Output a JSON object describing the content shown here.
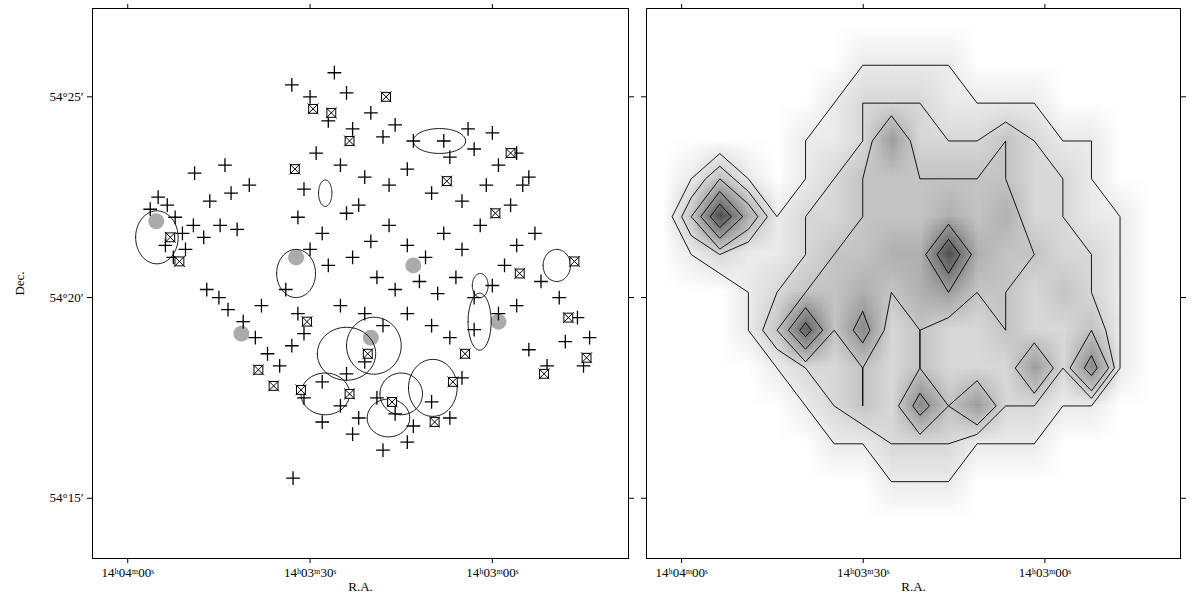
{
  "chart_data": [
    {
      "type": "scatter",
      "xlabel": "R.A.",
      "ylabel": "Dec.",
      "xlim": [
        50645.8,
        50557.6
      ],
      "ylim": [
        3253.5,
        3267.2
      ],
      "xticks": [
        {
          "value": 50640,
          "label": "14ʰ04ᵐ00ˢ"
        },
        {
          "value": 50610,
          "label": "14ʰ03ᵐ30ˢ"
        },
        {
          "value": 50580,
          "label": "14ʰ03ᵐ00ˢ"
        }
      ],
      "yticks": [
        {
          "value": 3255,
          "label": "54°15′"
        },
        {
          "value": 3260,
          "label": "54°20′"
        },
        {
          "value": 3265,
          "label": "54°25′"
        }
      ],
      "knots": [
        [
          50635.3,
          3261.9
        ],
        [
          50621.3,
          3259.1
        ],
        [
          50612.3,
          3261.0
        ],
        [
          50593,
          3260.8
        ],
        [
          50579,
          3259.4
        ],
        [
          50600,
          3259.0
        ]
      ],
      "series": [
        {
          "marker": "plus",
          "color": "#000000",
          "values": [
            [
              50636.3,
              3262.2
            ],
            [
              50635.0,
              3262.5
            ],
            [
              50633.5,
              3262.3
            ],
            [
              50632.2,
              3262.0
            ],
            [
              50631.0,
              3261.6
            ],
            [
              50633.8,
              3261.3
            ],
            [
              50632.5,
              3261.0
            ],
            [
              50630.5,
              3261.2
            ],
            [
              50629.2,
              3261.8
            ],
            [
              50627.5,
              3261.5
            ],
            [
              50626.5,
              3262.4
            ],
            [
              50624.8,
              3261.8
            ],
            [
              50623,
              3262.6
            ],
            [
              50622,
              3261.7
            ],
            [
              50620,
              3262.8
            ],
            [
              50627,
              3260.2
            ],
            [
              50625,
              3260.0
            ],
            [
              50623.5,
              3259.7
            ],
            [
              50621,
              3259.4
            ],
            [
              50619,
              3259.0
            ],
            [
              50617,
              3258.6
            ],
            [
              50615,
              3258.3
            ],
            [
              50613,
              3258.8
            ],
            [
              50611,
              3259.1
            ],
            [
              50618,
              3259.8
            ],
            [
              50614,
              3260.2
            ],
            [
              50612,
              3259.6
            ],
            [
              50613,
              3265.3
            ],
            [
              50610,
              3265.0
            ],
            [
              50606,
              3265.6
            ],
            [
              50604,
              3265.1
            ],
            [
              50607,
              3264.4
            ],
            [
              50603,
              3264.2
            ],
            [
              50600,
              3264.6
            ],
            [
              50598,
              3264.0
            ],
            [
              50596,
              3264.3
            ],
            [
              50593,
              3263.9
            ],
            [
              50609,
              3263.6
            ],
            [
              50605,
              3263.3
            ],
            [
              50601,
              3263.0
            ],
            [
              50611,
              3262.7
            ],
            [
              50597,
              3262.8
            ],
            [
              50594,
              3263.2
            ],
            [
              50590,
              3262.6
            ],
            [
              50612,
              3262.0
            ],
            [
              50608,
              3261.6
            ],
            [
              50604,
              3262.1
            ],
            [
              50610,
              3261.2
            ],
            [
              50607,
              3260.8
            ],
            [
              50603,
              3261.0
            ],
            [
              50600,
              3261.4
            ],
            [
              50597,
              3261.8
            ],
            [
              50594,
              3261.3
            ],
            [
              50591,
              3261.0
            ],
            [
              50588,
              3261.6
            ],
            [
              50585,
              3261.2
            ],
            [
              50582,
              3261.8
            ],
            [
              50599,
              3260.5
            ],
            [
              50596,
              3260.2
            ],
            [
              50592,
              3260.4
            ],
            [
              50589,
              3260.1
            ],
            [
              50586,
              3260.5
            ],
            [
              50583,
              3260.0
            ],
            [
              50580,
              3260.3
            ],
            [
              50578,
              3260.8
            ],
            [
              50576,
              3261.3
            ],
            [
              50605,
              3259.8
            ],
            [
              50601,
              3259.6
            ],
            [
              50598,
              3259.3
            ],
            [
              50594,
              3259.6
            ],
            [
              50590,
              3259.3
            ],
            [
              50587,
              3259.0
            ],
            [
              50583,
              3259.2
            ],
            [
              50579,
              3259.6
            ],
            [
              50576,
              3259.8
            ],
            [
              50602,
              3262.3
            ],
            [
              50585,
              3262.4
            ],
            [
              50581,
              3262.8
            ],
            [
              50577,
              3262.3
            ],
            [
              50587,
              3263.5
            ],
            [
              50583,
              3263.7
            ],
            [
              50579,
              3263.3
            ],
            [
              50575,
              3262.8
            ],
            [
              50573,
              3261.6
            ],
            [
              50588,
              3263.9
            ],
            [
              50584,
              3264.2
            ],
            [
              50580,
              3264.1
            ],
            [
              50576,
              3263.6
            ],
            [
              50574,
              3263.0
            ],
            [
              50572,
              3260.4
            ],
            [
              50569,
              3260.0
            ],
            [
              50566,
              3259.5
            ],
            [
              50568,
              3258.9
            ],
            [
              50571,
              3258.3
            ],
            [
              50574,
              3258.7
            ],
            [
              50565,
              3258.3
            ],
            [
              50564,
              3259.0
            ],
            [
              50611,
              3257.5
            ],
            [
              50608,
              3257.9
            ],
            [
              50605,
              3257.3
            ],
            [
              50602,
              3257.0
            ],
            [
              50599,
              3257.5
            ],
            [
              50596,
              3257.1
            ],
            [
              50593,
              3256.8
            ],
            [
              50590,
              3257.4
            ],
            [
              50587,
              3257.0
            ],
            [
              50594,
              3256.4
            ],
            [
              50598,
              3256.2
            ],
            [
              50603,
              3256.6
            ],
            [
              50608,
              3256.9
            ],
            [
              50585,
              3258.0
            ],
            [
              50601,
              3258.4
            ],
            [
              50604,
              3258.1
            ],
            [
              50612.8,
              3255.5
            ],
            [
              50629,
              3263.1
            ],
            [
              50624,
              3263.3
            ]
          ]
        },
        {
          "marker": "boxed_cross",
          "color": "#000000",
          "values": [
            [
              50633.0,
              3261.5
            ],
            [
              50631.5,
              3260.9
            ],
            [
              50610.5,
              3259.4
            ],
            [
              50618.5,
              3258.2
            ],
            [
              50616,
              3257.8
            ],
            [
              50609.5,
              3264.7
            ],
            [
              50606.5,
              3264.6
            ],
            [
              50612.5,
              3263.2
            ],
            [
              50603.5,
              3263.9
            ],
            [
              50597.5,
              3265.0
            ],
            [
              50587.5,
              3262.9
            ],
            [
              50579.5,
              3262.1
            ],
            [
              50575.5,
              3260.6
            ],
            [
              50584.5,
              3258.6
            ],
            [
              50577,
              3263.6
            ],
            [
              50566.5,
              3260.9
            ],
            [
              50567.5,
              3259.5
            ],
            [
              50564.5,
              3258.5
            ],
            [
              50571.5,
              3258.1
            ],
            [
              50611.5,
              3257.7
            ],
            [
              50603.5,
              3257.6
            ],
            [
              50596.5,
              3257.4
            ],
            [
              50589.5,
              3256.9
            ],
            [
              50586.5,
              3257.9
            ],
            [
              50600.5,
              3258.6
            ]
          ]
        }
      ],
      "ellipses": [
        [
          50635.2,
          3261.5,
          3.5,
          0.66
        ],
        [
          50612.3,
          3260.6,
          3.2,
          0.6
        ],
        [
          50607.5,
          3262.6,
          1.1,
          0.33
        ],
        [
          50588.7,
          3263.9,
          4.3,
          0.31
        ],
        [
          50582,
          3260.3,
          1.3,
          0.3
        ],
        [
          50582.1,
          3259.4,
          1.9,
          0.71
        ],
        [
          50569.4,
          3260.8,
          2.25,
          0.4
        ],
        [
          50604,
          3258.6,
          4.8,
          0.66
        ],
        [
          50599.5,
          3258.8,
          4.5,
          0.71
        ],
        [
          50589.8,
          3257.75,
          4.0,
          0.71
        ],
        [
          50607.5,
          3257.6,
          4.0,
          0.52
        ],
        [
          50597.1,
          3257.0,
          3.5,
          0.47
        ],
        [
          50595,
          3257.6,
          3.5,
          0.52
        ]
      ]
    },
    {
      "type": "contour",
      "xlabel": "R.A.",
      "tick_labels": "x",
      "xlim": [
        50645.8,
        50557.6
      ],
      "ylim": [
        3253.5,
        3267.2
      ],
      "xticks": [
        {
          "value": 50640,
          "label": "14ʰ04ᵐ00ˢ"
        },
        {
          "value": 50610,
          "label": "14ʰ03ᵐ30ˢ"
        },
        {
          "value": 50580,
          "label": "14ʰ03ᵐ00ˢ"
        }
      ],
      "yticks": [
        {
          "value": 3255,
          "label": "54°15′"
        },
        {
          "value": 3260,
          "label": "54°20′"
        },
        {
          "value": 3265,
          "label": "54°25′"
        }
      ],
      "contour_levels": [
        1,
        2,
        3,
        5,
        7
      ],
      "color_range": [
        0,
        10
      ],
      "image": {
        "x_extent": [
          50645.5,
          50560.5
        ],
        "y_extent": [
          3254,
          3267.2
        ],
        "rows": [
          [
            0,
            0,
            0,
            0,
            0,
            0,
            0,
            0,
            0,
            0,
            0,
            0,
            0,
            0,
            0,
            0,
            0,
            0
          ],
          [
            0,
            0,
            0,
            0,
            0,
            0,
            0,
            0,
            1,
            1,
            1,
            0,
            0,
            0,
            0,
            0,
            0,
            0
          ],
          [
            0,
            0,
            0,
            0,
            0,
            0,
            1,
            1,
            2,
            2,
            2,
            1,
            1,
            1,
            0,
            0,
            0,
            0
          ],
          [
            0,
            0,
            0,
            0,
            0,
            1,
            2,
            3,
            2,
            6,
            3,
            5,
            2,
            2,
            1,
            1,
            0,
            0
          ],
          [
            0,
            0,
            0,
            0,
            1,
            2,
            2,
            3,
            2,
            3,
            2,
            2,
            2,
            5,
            2,
            6,
            1,
            0
          ],
          [
            0,
            0,
            0,
            1,
            3,
            8,
            3,
            6,
            2,
            3,
            2,
            2,
            3,
            2,
            2,
            3,
            1,
            0
          ],
          [
            0,
            0,
            0,
            1,
            2,
            3,
            3,
            4,
            3,
            4,
            5,
            3,
            3,
            2,
            3,
            2,
            1,
            0
          ],
          [
            0,
            1,
            2,
            1,
            1,
            2,
            3,
            3,
            4,
            4,
            9,
            4,
            3,
            3,
            2,
            2,
            1,
            0
          ],
          [
            0,
            3,
            9,
            4,
            1,
            2,
            2,
            3,
            3,
            3,
            4,
            3,
            4,
            2,
            2,
            1,
            1,
            0
          ],
          [
            0,
            1,
            3,
            1,
            0,
            1,
            2,
            3,
            3,
            3,
            3,
            3,
            3,
            2,
            2,
            1,
            0,
            0
          ],
          [
            0,
            0,
            0,
            0,
            0,
            1,
            1,
            2,
            5,
            2,
            2,
            2,
            3,
            2,
            1,
            1,
            0,
            0
          ],
          [
            0,
            0,
            0,
            0,
            0,
            0,
            1,
            2,
            2,
            2,
            1,
            1,
            1,
            1,
            0,
            0,
            0,
            0
          ],
          [
            0,
            0,
            0,
            0,
            0,
            0,
            0,
            1,
            1,
            1,
            1,
            0,
            0,
            0,
            0,
            0,
            0,
            0
          ],
          [
            0,
            0,
            0,
            0,
            0,
            0,
            0,
            0,
            0,
            0,
            0,
            0,
            0,
            0,
            0,
            0,
            0,
            0
          ]
        ]
      }
    }
  ]
}
